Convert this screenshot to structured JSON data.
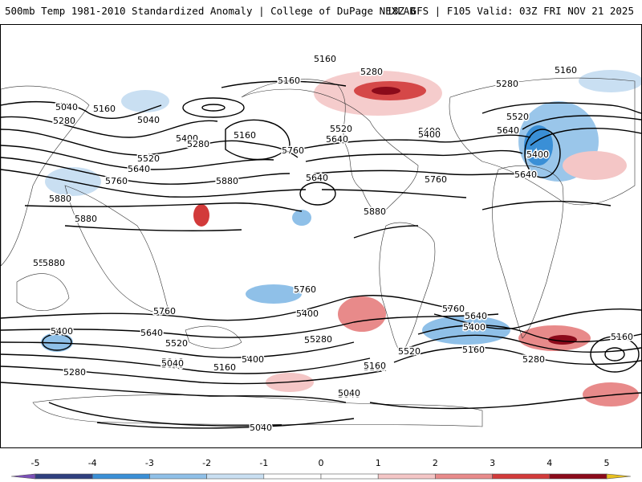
{
  "header": {
    "title_left": "500mb Temp 1981-2010 Standardized Anomaly | College of DuPage NEXLAB",
    "title_right": "18Z GFS | F105 Valid: 03Z FRI NOV 21 2025"
  },
  "contour_labels": [
    "5160",
    "5280",
    "5160",
    "5280",
    "5160",
    "5040",
    "5160",
    "5040",
    "5280",
    "5400",
    "5280",
    "5160",
    "5520",
    "5640",
    "5400",
    "5520",
    "5640",
    "5760",
    "5880",
    "5880",
    "5880",
    "5880",
    "5760",
    "5640",
    "5520",
    "5400",
    "5760",
    "5640",
    "5520",
    "5400",
    "5160",
    "5520",
    "5640",
    "5400",
    "5760",
    "5160",
    "5040",
    "5280",
    "5880",
    "5760",
    "5640",
    "5520",
    "5400",
    "5280",
    "5160",
    "5040",
    "5400",
    "5280",
    "5160",
    "5040",
    "5640",
    "5760",
    "5400",
    "5280",
    "5160",
    "5040",
    "5040",
    "5040"
  ],
  "colorbar": {
    "ticks": [
      "-5",
      "-4",
      "-3",
      "-2",
      "-1",
      "0",
      "1",
      "2",
      "3",
      "4",
      "5"
    ],
    "colors": [
      "#7b4fb8",
      "#2f3f7f",
      "#3a8fd6",
      "#8fc0e8",
      "#c9dff2",
      "#ffffff",
      "#ffffff",
      "#f4c6c6",
      "#e88a8a",
      "#d23a3a",
      "#8b0a1a",
      "#e8c020"
    ]
  }
}
